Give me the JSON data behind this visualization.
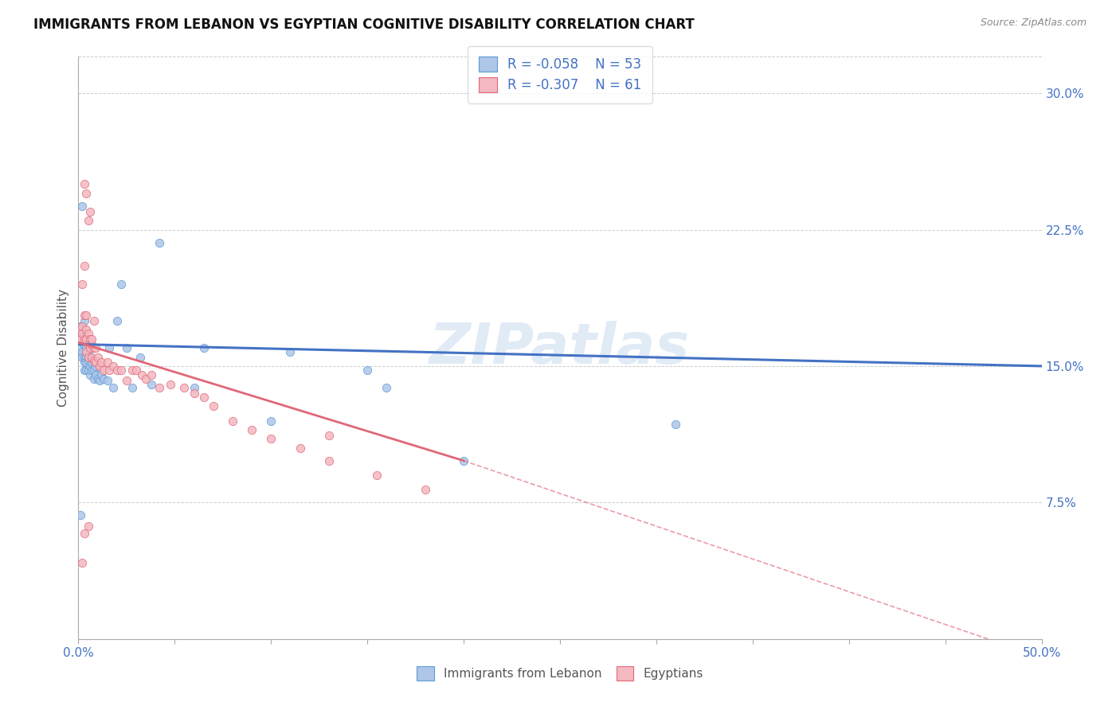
{
  "title": "IMMIGRANTS FROM LEBANON VS EGYPTIAN COGNITIVE DISABILITY CORRELATION CHART",
  "source_text": "Source: ZipAtlas.com",
  "ylabel": "Cognitive Disability",
  "xlim": [
    0.0,
    0.5
  ],
  "ylim": [
    0.0,
    0.32
  ],
  "xtick_positions": [
    0.0,
    0.05,
    0.1,
    0.15,
    0.2,
    0.25,
    0.3,
    0.35,
    0.4,
    0.45,
    0.5
  ],
  "xticklabels": [
    "0.0%",
    "",
    "",
    "",
    "",
    "",
    "",
    "",
    "",
    "",
    "50.0%"
  ],
  "right_yticks": [
    0.075,
    0.15,
    0.225,
    0.3
  ],
  "right_yticklabels": [
    "7.5%",
    "15.0%",
    "22.5%",
    "30.0%"
  ],
  "r1": "-0.058",
  "n1": "53",
  "r2": "-0.307",
  "n2": "61",
  "color1_fill": "#aec6e8",
  "color1_edge": "#5b9bd5",
  "color2_fill": "#f4b8c1",
  "color2_edge": "#e06878",
  "trend1_color": "#4472c4",
  "trend2_color": "#e06878",
  "watermark": "ZIPatlas",
  "title_fontsize": 12,
  "tick_color": "#4472c4",
  "series1_x": [
    0.001,
    0.001,
    0.002,
    0.002,
    0.002,
    0.002,
    0.003,
    0.003,
    0.003,
    0.003,
    0.003,
    0.004,
    0.004,
    0.004,
    0.004,
    0.004,
    0.005,
    0.005,
    0.005,
    0.005,
    0.006,
    0.006,
    0.006,
    0.007,
    0.007,
    0.008,
    0.008,
    0.009,
    0.009,
    0.01,
    0.011,
    0.012,
    0.013,
    0.015,
    0.016,
    0.018,
    0.02,
    0.022,
    0.025,
    0.028,
    0.032,
    0.038,
    0.042,
    0.06,
    0.065,
    0.1,
    0.11,
    0.15,
    0.16,
    0.2,
    0.31,
    0.002,
    0.001
  ],
  "series1_y": [
    0.16,
    0.172,
    0.168,
    0.163,
    0.158,
    0.155,
    0.175,
    0.162,
    0.155,
    0.152,
    0.148,
    0.165,
    0.16,
    0.155,
    0.152,
    0.148,
    0.163,
    0.158,
    0.153,
    0.148,
    0.155,
    0.15,
    0.145,
    0.152,
    0.148,
    0.148,
    0.143,
    0.15,
    0.145,
    0.143,
    0.142,
    0.145,
    0.143,
    0.142,
    0.16,
    0.138,
    0.175,
    0.195,
    0.16,
    0.138,
    0.155,
    0.14,
    0.218,
    0.138,
    0.16,
    0.12,
    0.158,
    0.148,
    0.138,
    0.098,
    0.118,
    0.238,
    0.068
  ],
  "series2_x": [
    0.001,
    0.001,
    0.002,
    0.002,
    0.003,
    0.003,
    0.003,
    0.004,
    0.004,
    0.004,
    0.004,
    0.005,
    0.005,
    0.005,
    0.006,
    0.006,
    0.007,
    0.007,
    0.008,
    0.008,
    0.009,
    0.009,
    0.01,
    0.011,
    0.012,
    0.013,
    0.015,
    0.016,
    0.018,
    0.02,
    0.022,
    0.025,
    0.028,
    0.03,
    0.033,
    0.035,
    0.038,
    0.042,
    0.048,
    0.055,
    0.06,
    0.065,
    0.07,
    0.08,
    0.09,
    0.1,
    0.115,
    0.13,
    0.155,
    0.18,
    0.002,
    0.003,
    0.004,
    0.005,
    0.006,
    0.007,
    0.008,
    0.13,
    0.003,
    0.002,
    0.005
  ],
  "series2_y": [
    0.17,
    0.165,
    0.172,
    0.168,
    0.178,
    0.25,
    0.165,
    0.17,
    0.165,
    0.158,
    0.245,
    0.168,
    0.162,
    0.155,
    0.165,
    0.16,
    0.162,
    0.155,
    0.16,
    0.153,
    0.16,
    0.152,
    0.155,
    0.15,
    0.152,
    0.148,
    0.152,
    0.148,
    0.15,
    0.148,
    0.148,
    0.142,
    0.148,
    0.148,
    0.145,
    0.143,
    0.145,
    0.138,
    0.14,
    0.138,
    0.135,
    0.133,
    0.128,
    0.12,
    0.115,
    0.11,
    0.105,
    0.098,
    0.09,
    0.082,
    0.195,
    0.205,
    0.178,
    0.23,
    0.235,
    0.165,
    0.175,
    0.112,
    0.058,
    0.042,
    0.062
  ],
  "trend1_x_start": 0.0,
  "trend1_x_end": 0.5,
  "trend1_y_start": 0.162,
  "trend1_y_end": 0.15,
  "trend2_solid_x_start": 0.0,
  "trend2_solid_x_end": 0.2,
  "trend2_solid_y_start": 0.163,
  "trend2_solid_y_end": 0.098,
  "trend2_dash_x_start": 0.2,
  "trend2_dash_x_end": 0.5,
  "trend2_dash_y_start": 0.098,
  "trend2_dash_y_end": -0.01
}
